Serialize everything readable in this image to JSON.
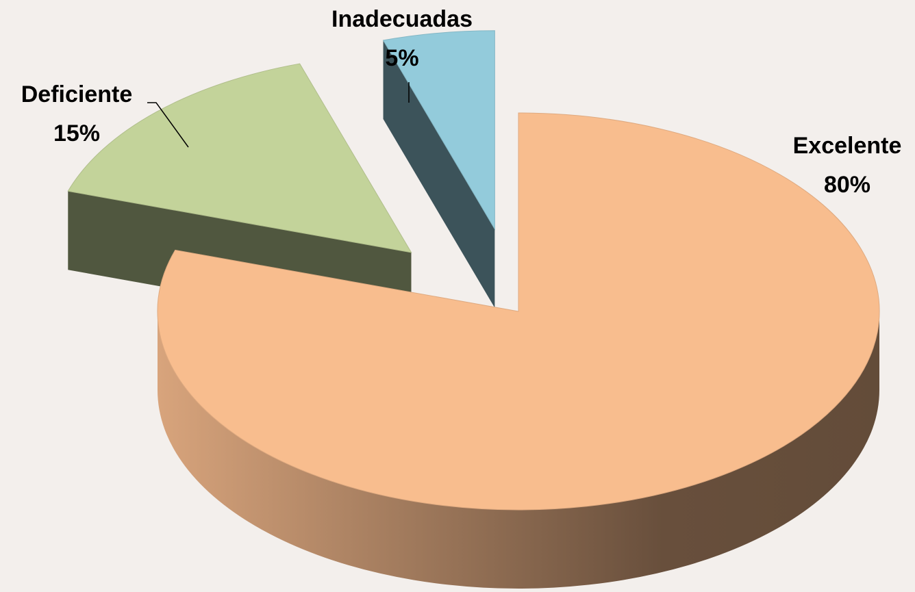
{
  "chart_data": {
    "type": "pie",
    "categories": [
      "Excelente",
      "Deficiente",
      "Inadecuadas"
    ],
    "values": [
      80,
      15,
      5
    ],
    "value_labels": [
      "80%",
      "15%",
      "5%"
    ],
    "colors": [
      "#f8bd8e",
      "#c3d39a",
      "#93cbdb"
    ]
  }
}
